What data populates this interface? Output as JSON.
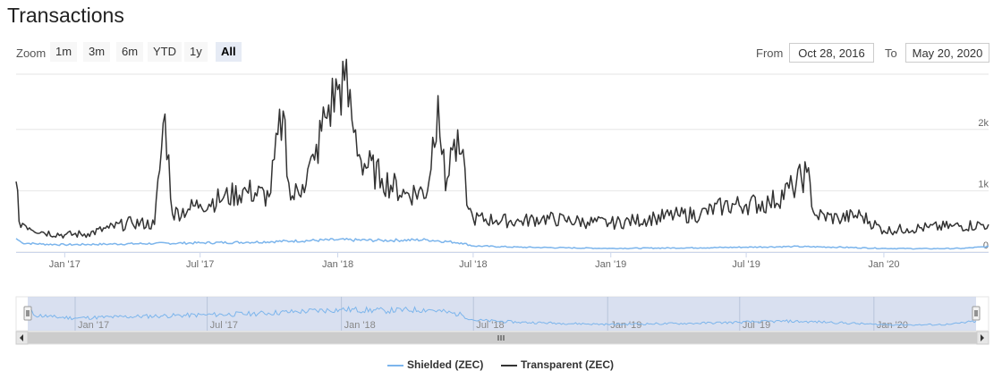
{
  "header": {
    "title": "Transactions"
  },
  "zoom": {
    "label": "Zoom",
    "buttons": [
      "1m",
      "3m",
      "6m",
      "YTD",
      "1y",
      "All"
    ],
    "active": "All"
  },
  "range": {
    "from_label": "From",
    "from_value": "Oct 28, 2016",
    "to_label": "To",
    "to_value": "May 20, 2020"
  },
  "colors": {
    "shielded": "#7cb5ec",
    "transparent": "#333333",
    "navigator_fill": "#ccd6eb"
  },
  "chart_data": {
    "type": "line",
    "title": "Transactions",
    "x_range": [
      "2016-10-28",
      "2020-05-20"
    ],
    "ylim": [
      0,
      2900
    ],
    "y_ticks": [
      0,
      1000,
      2000
    ],
    "y_tick_labels": [
      "0",
      "1k",
      "2k"
    ],
    "x_tick_labels": [
      "Jan '17",
      "Jul '17",
      "Jan '18",
      "Jul '18",
      "Jan '19",
      "Jul '19",
      "Jan '20"
    ],
    "x_tick_dates": [
      "2017-01-01",
      "2017-07-01",
      "2018-01-01",
      "2018-07-01",
      "2019-01-01",
      "2019-07-01",
      "2020-01-01"
    ],
    "legend_position": "bottom-center",
    "series": [
      {
        "name": "Shielded (ZEC)",
        "points": [
          [
            "2016-10-28",
            220
          ],
          [
            "2016-11-05",
            150
          ],
          [
            "2016-12-01",
            130
          ],
          [
            "2017-01-01",
            120
          ],
          [
            "2017-03-01",
            130
          ],
          [
            "2017-05-01",
            140
          ],
          [
            "2017-07-01",
            150
          ],
          [
            "2017-09-01",
            160
          ],
          [
            "2017-11-01",
            180
          ],
          [
            "2018-01-01",
            200
          ],
          [
            "2018-03-01",
            190
          ],
          [
            "2018-05-01",
            200
          ],
          [
            "2018-06-15",
            150
          ],
          [
            "2018-07-01",
            100
          ],
          [
            "2018-09-01",
            80
          ],
          [
            "2018-11-01",
            70
          ],
          [
            "2019-01-01",
            60
          ],
          [
            "2019-03-01",
            65
          ],
          [
            "2019-05-01",
            70
          ],
          [
            "2019-07-01",
            80
          ],
          [
            "2019-09-01",
            90
          ],
          [
            "2019-11-01",
            80
          ],
          [
            "2020-01-01",
            60
          ],
          [
            "2020-03-01",
            55
          ],
          [
            "2020-04-15",
            60
          ],
          [
            "2020-05-20",
            90
          ]
        ]
      },
      {
        "name": "Transparent (ZEC)",
        "points": [
          [
            "2016-10-28",
            1150
          ],
          [
            "2016-11-01",
            500
          ],
          [
            "2016-12-01",
            330
          ],
          [
            "2017-01-01",
            280
          ],
          [
            "2017-02-01",
            300
          ],
          [
            "2017-03-01",
            390
          ],
          [
            "2017-04-01",
            480
          ],
          [
            "2017-05-01",
            450
          ],
          [
            "2017-05-15",
            2250
          ],
          [
            "2017-05-25",
            620
          ],
          [
            "2017-06-15",
            700
          ],
          [
            "2017-07-01",
            780
          ],
          [
            "2017-08-01",
            880
          ],
          [
            "2017-09-01",
            1000
          ],
          [
            "2017-10-01",
            900
          ],
          [
            "2017-10-20",
            2300
          ],
          [
            "2017-10-30",
            850
          ],
          [
            "2017-11-15",
            1100
          ],
          [
            "2017-12-01",
            1500
          ],
          [
            "2017-12-15",
            2200
          ],
          [
            "2018-01-01",
            2650
          ],
          [
            "2018-01-10",
            2800
          ],
          [
            "2018-01-20",
            2150
          ],
          [
            "2018-02-01",
            1500
          ],
          [
            "2018-03-01",
            1200
          ],
          [
            "2018-04-01",
            950
          ],
          [
            "2018-05-01",
            1000
          ],
          [
            "2018-05-15",
            2550
          ],
          [
            "2018-05-25",
            1000
          ],
          [
            "2018-06-01",
            1700
          ],
          [
            "2018-06-15",
            1600
          ],
          [
            "2018-06-25",
            700
          ],
          [
            "2018-07-01",
            550
          ],
          [
            "2018-08-01",
            520
          ],
          [
            "2018-09-01",
            500
          ],
          [
            "2018-10-01",
            550
          ],
          [
            "2018-11-01",
            520
          ],
          [
            "2018-12-01",
            490
          ],
          [
            "2019-01-01",
            470
          ],
          [
            "2019-02-01",
            510
          ],
          [
            "2019-03-01",
            560
          ],
          [
            "2019-04-01",
            600
          ],
          [
            "2019-05-01",
            620
          ],
          [
            "2019-06-01",
            750
          ],
          [
            "2019-07-01",
            780
          ],
          [
            "2019-08-01",
            800
          ],
          [
            "2019-09-01",
            1050
          ],
          [
            "2019-09-20",
            1300
          ],
          [
            "2019-10-01",
            600
          ],
          [
            "2019-11-01",
            550
          ],
          [
            "2019-12-01",
            600
          ],
          [
            "2020-01-01",
            350
          ],
          [
            "2020-02-01",
            380
          ],
          [
            "2020-03-01",
            400
          ],
          [
            "2020-04-01",
            420
          ],
          [
            "2020-05-20",
            450
          ]
        ]
      }
    ]
  },
  "navigator": {
    "x_tick_labels": [
      "Jan '17",
      "Jul '17",
      "Jan '18",
      "Jul '18",
      "Jan '19",
      "Jul '19",
      "Jan '20"
    ]
  }
}
